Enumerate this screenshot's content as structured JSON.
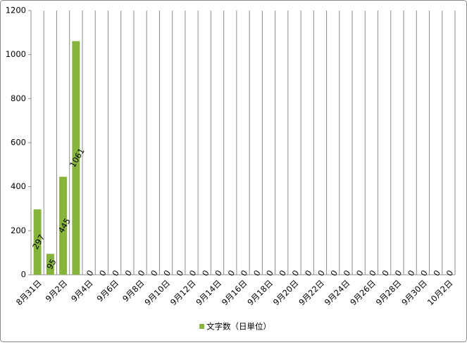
{
  "chart_data": {
    "type": "bar",
    "categories": [
      "8月31日",
      null,
      "9月2日",
      null,
      "9月4日",
      null,
      "9月6日",
      null,
      "9月8日",
      null,
      "9月10日",
      null,
      "9月12日",
      null,
      "9月14日",
      null,
      "9月16日",
      null,
      "9月18日",
      null,
      "9月20日",
      null,
      "9月22日",
      null,
      "9月24日",
      null,
      "9月26日",
      null,
      "9月28日",
      null,
      "9月30日",
      null,
      "10月2日"
    ],
    "series": [
      {
        "name": "文字数（日単位）",
        "color": "#86b43c",
        "values": [
          297,
          95,
          445,
          1061,
          0,
          0,
          0,
          0,
          0,
          0,
          0,
          0,
          0,
          0,
          0,
          0,
          0,
          0,
          0,
          0,
          0,
          0,
          0,
          0,
          0,
          0,
          0,
          0,
          0,
          0,
          0,
          0,
          0
        ]
      }
    ],
    "ylim": [
      0,
      1200
    ],
    "yticks": [
      0,
      200,
      400,
      600,
      800,
      1000,
      1200
    ],
    "grid": true
  }
}
